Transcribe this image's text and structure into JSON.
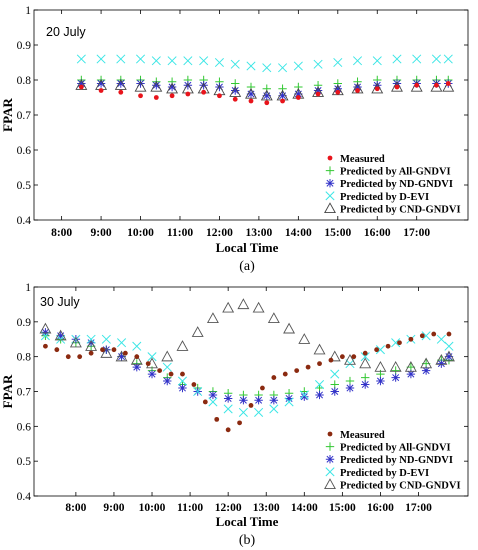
{
  "chart_data": [
    {
      "panel_label": "(a)",
      "annotation": "20 July",
      "type": "scatter",
      "xlabel": "Local Time",
      "ylabel": "FPAR",
      "xlim": [
        7.3,
        18.3
      ],
      "ylim": [
        0.4,
        1.0
      ],
      "x_ticks": [
        8,
        9,
        10,
        11,
        12,
        13,
        14,
        15,
        16,
        17
      ],
      "x_tick_labels": [
        "8:00",
        "9:00",
        "10:00",
        "11:00",
        "12:00",
        "13:00",
        "14:00",
        "15:00",
        "16:00",
        "17:00"
      ],
      "y_ticks": [
        0.4,
        0.5,
        0.6,
        0.7,
        0.8,
        0.9,
        1.0
      ],
      "y_tick_labels": [
        "0.4",
        "0.5",
        "0.6",
        "0.7",
        "0.8",
        "0.9",
        "1"
      ],
      "legend_position": "bottom-right",
      "grid": false,
      "series": [
        {
          "name": "Measured",
          "marker": "dot",
          "color": "#e8141b",
          "x": [
            8.5,
            9.0,
            9.5,
            10.0,
            10.4,
            10.8,
            11.2,
            11.6,
            12.0,
            12.4,
            12.8,
            13.2,
            13.6,
            14.0,
            14.5,
            15.0,
            15.5,
            16.0,
            16.5,
            17.0,
            17.5,
            17.8
          ],
          "values": [
            0.78,
            0.77,
            0.765,
            0.755,
            0.75,
            0.755,
            0.76,
            0.765,
            0.755,
            0.745,
            0.74,
            0.735,
            0.74,
            0.75,
            0.76,
            0.765,
            0.77,
            0.775,
            0.78,
            0.785,
            0.785,
            0.79
          ]
        },
        {
          "name": "Predicted by All-GNDVI",
          "marker": "plus",
          "color": "#32c832",
          "x": [
            8.5,
            9.0,
            9.5,
            10.0,
            10.4,
            10.8,
            11.2,
            11.6,
            12.0,
            12.4,
            12.8,
            13.2,
            13.6,
            14.0,
            14.5,
            15.0,
            15.5,
            16.0,
            16.5,
            17.0,
            17.5,
            17.8
          ],
          "values": [
            0.8,
            0.8,
            0.8,
            0.8,
            0.795,
            0.795,
            0.8,
            0.8,
            0.795,
            0.79,
            0.78,
            0.775,
            0.775,
            0.78,
            0.785,
            0.79,
            0.795,
            0.8,
            0.8,
            0.8,
            0.8,
            0.8
          ]
        },
        {
          "name": "Predicted by ND-GNDVI",
          "marker": "star",
          "color": "#3232c8",
          "x": [
            8.5,
            9.0,
            9.5,
            10.0,
            10.4,
            10.8,
            11.2,
            11.6,
            12.0,
            12.4,
            12.8,
            13.2,
            13.6,
            14.0,
            14.5,
            15.0,
            15.5,
            16.0,
            16.5,
            17.0,
            17.5,
            17.8
          ],
          "values": [
            0.79,
            0.79,
            0.79,
            0.79,
            0.785,
            0.78,
            0.785,
            0.785,
            0.78,
            0.77,
            0.76,
            0.755,
            0.755,
            0.76,
            0.77,
            0.775,
            0.78,
            0.785,
            0.79,
            0.79,
            0.79,
            0.79
          ]
        },
        {
          "name": "Predicted by D-EVI",
          "marker": "x",
          "color": "#3ce6e6",
          "x": [
            8.5,
            9.0,
            9.5,
            10.0,
            10.4,
            10.8,
            11.2,
            11.6,
            12.0,
            12.4,
            12.8,
            13.2,
            13.6,
            14.0,
            14.5,
            15.0,
            15.5,
            16.0,
            16.5,
            17.0,
            17.5,
            17.8
          ],
          "values": [
            0.86,
            0.86,
            0.86,
            0.86,
            0.855,
            0.855,
            0.855,
            0.855,
            0.85,
            0.845,
            0.84,
            0.835,
            0.835,
            0.84,
            0.845,
            0.85,
            0.855,
            0.855,
            0.86,
            0.86,
            0.86,
            0.86
          ]
        },
        {
          "name": "Predicted by CND-GNDVI",
          "marker": "triangle",
          "color": "#444444",
          "x": [
            8.5,
            9.0,
            9.5,
            10.0,
            10.4,
            10.8,
            11.2,
            11.6,
            12.0,
            12.4,
            12.8,
            13.2,
            13.6,
            14.0,
            14.5,
            15.0,
            15.5,
            16.0,
            16.5,
            17.0,
            17.5,
            17.8
          ],
          "values": [
            0.785,
            0.785,
            0.785,
            0.78,
            0.78,
            0.775,
            0.775,
            0.775,
            0.77,
            0.765,
            0.76,
            0.755,
            0.755,
            0.76,
            0.765,
            0.77,
            0.775,
            0.775,
            0.78,
            0.78,
            0.78,
            0.78
          ]
        }
      ]
    },
    {
      "panel_label": "(b)",
      "annotation": "30 July",
      "type": "scatter",
      "xlabel": "Local Time",
      "ylabel": "FPAR",
      "xlim": [
        6.9,
        18.3
      ],
      "ylim": [
        0.4,
        1.0
      ],
      "x_ticks": [
        8,
        9,
        10,
        11,
        12,
        13,
        14,
        15,
        16,
        17
      ],
      "x_tick_labels": [
        "8:00",
        "9:00",
        "10:00",
        "11:00",
        "12:00",
        "13:00",
        "14:00",
        "15:00",
        "16:00",
        "17:00"
      ],
      "y_ticks": [
        0.4,
        0.5,
        0.6,
        0.7,
        0.8,
        0.9,
        1.0
      ],
      "y_tick_labels": [
        "0.4",
        "0.5",
        "0.6",
        "0.7",
        "0.8",
        "0.9",
        "1"
      ],
      "legend_position": "bottom-right",
      "grid": false,
      "series": [
        {
          "name": "Measured",
          "marker": "dot",
          "color": "#8b2a10",
          "x": [
            7.2,
            7.5,
            7.8,
            8.1,
            8.4,
            8.7,
            9.0,
            9.3,
            9.6,
            9.9,
            10.2,
            10.5,
            10.8,
            11.1,
            11.4,
            11.7,
            12.0,
            12.3,
            12.6,
            12.9,
            13.2,
            13.5,
            13.8,
            14.1,
            14.4,
            14.7,
            15.0,
            15.3,
            15.6,
            15.9,
            16.2,
            16.5,
            16.8,
            17.1,
            17.4,
            17.8
          ],
          "values": [
            0.83,
            0.82,
            0.8,
            0.8,
            0.81,
            0.82,
            0.82,
            0.81,
            0.8,
            0.78,
            0.76,
            0.75,
            0.75,
            0.72,
            0.67,
            0.62,
            0.59,
            0.61,
            0.66,
            0.71,
            0.74,
            0.75,
            0.76,
            0.77,
            0.78,
            0.79,
            0.8,
            0.8,
            0.81,
            0.82,
            0.83,
            0.84,
            0.85,
            0.86,
            0.865,
            0.865
          ]
        },
        {
          "name": "Predicted by All-GNDVI",
          "marker": "plus",
          "color": "#32c832",
          "x": [
            7.2,
            7.6,
            8.0,
            8.4,
            8.8,
            9.2,
            9.6,
            10.0,
            10.4,
            10.8,
            11.2,
            11.6,
            12.0,
            12.4,
            12.8,
            13.2,
            13.6,
            14.0,
            14.4,
            14.8,
            15.2,
            15.6,
            16.0,
            16.4,
            16.8,
            17.2,
            17.6,
            17.8
          ],
          "values": [
            0.86,
            0.85,
            0.84,
            0.83,
            0.82,
            0.8,
            0.78,
            0.76,
            0.74,
            0.72,
            0.71,
            0.7,
            0.695,
            0.69,
            0.69,
            0.69,
            0.695,
            0.7,
            0.71,
            0.72,
            0.73,
            0.74,
            0.75,
            0.76,
            0.77,
            0.78,
            0.79,
            0.79
          ]
        },
        {
          "name": "Predicted by ND-GNDVI",
          "marker": "star",
          "color": "#3232c8",
          "x": [
            7.2,
            7.6,
            8.0,
            8.4,
            8.8,
            9.2,
            9.6,
            10.0,
            10.4,
            10.8,
            11.2,
            11.6,
            12.0,
            12.4,
            12.8,
            13.2,
            13.6,
            14.0,
            14.4,
            14.8,
            15.2,
            15.6,
            16.0,
            16.4,
            16.8,
            17.2,
            17.6,
            17.8
          ],
          "values": [
            0.87,
            0.86,
            0.85,
            0.84,
            0.82,
            0.8,
            0.77,
            0.75,
            0.73,
            0.71,
            0.7,
            0.69,
            0.68,
            0.675,
            0.675,
            0.675,
            0.68,
            0.685,
            0.69,
            0.7,
            0.71,
            0.72,
            0.73,
            0.74,
            0.75,
            0.76,
            0.78,
            0.8
          ]
        },
        {
          "name": "Predicted by D-EVI",
          "marker": "x",
          "color": "#3ce6e6",
          "x": [
            7.2,
            7.6,
            8.0,
            8.4,
            8.8,
            9.2,
            9.6,
            10.0,
            10.4,
            10.8,
            11.2,
            11.6,
            12.0,
            12.4,
            12.8,
            13.2,
            13.6,
            14.0,
            14.4,
            14.8,
            15.2,
            15.6,
            16.0,
            16.4,
            16.8,
            17.2,
            17.6,
            17.8
          ],
          "values": [
            0.86,
            0.85,
            0.85,
            0.85,
            0.85,
            0.84,
            0.83,
            0.8,
            0.77,
            0.73,
            0.7,
            0.67,
            0.65,
            0.64,
            0.64,
            0.65,
            0.67,
            0.69,
            0.72,
            0.75,
            0.78,
            0.8,
            0.82,
            0.84,
            0.85,
            0.86,
            0.85,
            0.83
          ]
        },
        {
          "name": "Predicted by CND-GNDVI",
          "marker": "triangle",
          "color": "#555555",
          "x": [
            7.2,
            7.6,
            8.0,
            8.4,
            8.8,
            9.2,
            9.6,
            10.0,
            10.4,
            10.8,
            11.2,
            11.6,
            12.0,
            12.4,
            12.8,
            13.2,
            13.6,
            14.0,
            14.4,
            14.8,
            15.2,
            15.6,
            16.0,
            16.4,
            16.8,
            17.2,
            17.6,
            17.8
          ],
          "values": [
            0.88,
            0.86,
            0.84,
            0.83,
            0.81,
            0.8,
            0.79,
            0.78,
            0.8,
            0.83,
            0.87,
            0.91,
            0.94,
            0.95,
            0.94,
            0.91,
            0.88,
            0.85,
            0.82,
            0.8,
            0.79,
            0.78,
            0.77,
            0.77,
            0.77,
            0.78,
            0.79,
            0.8
          ]
        }
      ]
    }
  ]
}
